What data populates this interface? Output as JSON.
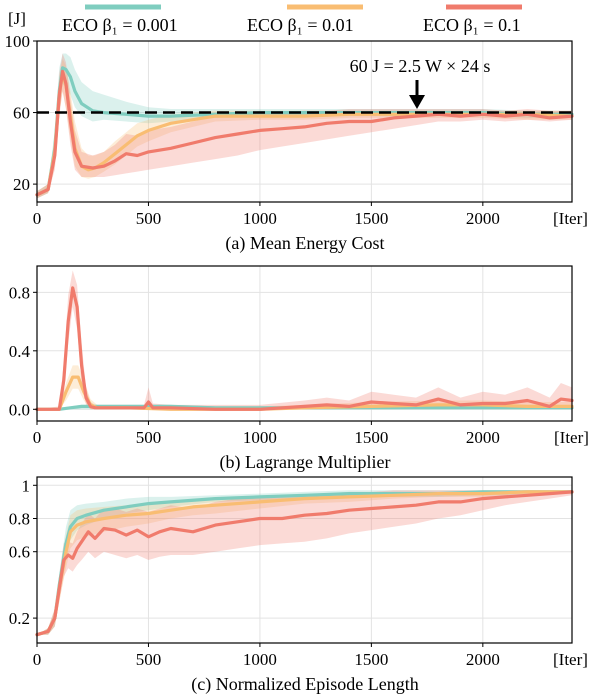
{
  "legend": {
    "entries": [
      {
        "label": "ECO β₁ = 0.001",
        "color": "#7fcdbf"
      },
      {
        "label": "ECO β₁ = 0.01",
        "color": "#f9bd72"
      },
      {
        "label": "ECO β₁ = 0.1",
        "color": "#f07b6c"
      }
    ]
  },
  "chart_data": [
    {
      "type": "line",
      "title": "(a) Mean Energy Cost",
      "ylabel": "[J]",
      "xlabel": "[Iter]",
      "xlim": [
        0,
        2400
      ],
      "ylim": [
        10,
        100
      ],
      "xticks": [
        0,
        500,
        1000,
        1500,
        2000
      ],
      "yticks": [
        20,
        60,
        100
      ],
      "reference_line": {
        "y": 60,
        "style": "dashed"
      },
      "annotation": {
        "text": "60 J = 2.5 W × 24 s",
        "x": 1720,
        "arrow_to_y": 62
      },
      "series": [
        {
          "name": "ECO β₁ = 0.001",
          "x": [
            0,
            50,
            80,
            100,
            115,
            130,
            150,
            170,
            200,
            250,
            300,
            400,
            500,
            600,
            800,
            1000,
            1200,
            1400,
            1600,
            1800,
            2000,
            2200,
            2400
          ],
          "y": [
            14,
            17,
            40,
            72,
            85,
            84,
            80,
            72,
            65,
            61,
            60,
            59,
            58,
            58,
            59,
            60,
            60,
            60,
            60,
            60,
            60,
            59,
            59
          ],
          "band_lo": [
            12,
            15,
            32,
            60,
            76,
            74,
            70,
            63,
            58,
            55,
            56,
            55,
            54,
            55,
            57,
            58,
            58,
            58,
            58,
            58,
            58,
            57,
            57
          ],
          "band_hi": [
            16,
            20,
            50,
            85,
            93,
            93,
            91,
            84,
            77,
            72,
            70,
            66,
            63,
            62,
            62,
            62,
            62,
            62,
            62,
            62,
            62,
            61,
            61
          ]
        },
        {
          "name": "ECO β₁ = 0.01",
          "x": [
            0,
            50,
            80,
            100,
            115,
            130,
            150,
            170,
            200,
            230,
            260,
            300,
            350,
            400,
            450,
            500,
            600,
            700,
            800,
            1000,
            1200,
            1400,
            1600,
            1800,
            2000,
            2200,
            2400
          ],
          "y": [
            14,
            17,
            38,
            70,
            82,
            75,
            58,
            40,
            30,
            28,
            29,
            32,
            37,
            42,
            47,
            50,
            54,
            56,
            58,
            58,
            58,
            59,
            59,
            59,
            59,
            59,
            58
          ],
          "band_lo": [
            12,
            15,
            30,
            60,
            72,
            62,
            45,
            30,
            24,
            23,
            24,
            27,
            31,
            36,
            41,
            44,
            49,
            52,
            55,
            56,
            56,
            57,
            57,
            57,
            57,
            56,
            56
          ],
          "band_hi": [
            16,
            20,
            46,
            80,
            90,
            86,
            72,
            55,
            40,
            36,
            36,
            38,
            44,
            49,
            54,
            56,
            59,
            60,
            61,
            61,
            61,
            61,
            61,
            61,
            61,
            61,
            61
          ]
        },
        {
          "name": "ECO β₁ = 0.1",
          "x": [
            0,
            50,
            80,
            100,
            115,
            130,
            150,
            170,
            200,
            250,
            300,
            350,
            400,
            450,
            500,
            600,
            700,
            800,
            900,
            1000,
            1100,
            1200,
            1300,
            1400,
            1500,
            1600,
            1700,
            1800,
            1900,
            2000,
            2100,
            2200,
            2300,
            2400
          ],
          "y": [
            14,
            17,
            36,
            70,
            83,
            76,
            55,
            38,
            30,
            29,
            30,
            33,
            37,
            36,
            38,
            40,
            43,
            46,
            48,
            50,
            51,
            52,
            54,
            55,
            55,
            57,
            58,
            59,
            58,
            59,
            58,
            59,
            57,
            58
          ],
          "band_lo": [
            12,
            15,
            28,
            58,
            72,
            62,
            42,
            28,
            24,
            24,
            24,
            25,
            26,
            27,
            28,
            30,
            32,
            34,
            36,
            39,
            41,
            43,
            45,
            47,
            49,
            51,
            53,
            55,
            55,
            56,
            55,
            56,
            55,
            56
          ],
          "band_hi": [
            16,
            20,
            44,
            82,
            93,
            88,
            68,
            50,
            38,
            36,
            38,
            42,
            48,
            47,
            50,
            52,
            55,
            58,
            59,
            60,
            60,
            61,
            61,
            62,
            62,
            62,
            62,
            62,
            62,
            62,
            61,
            62,
            61,
            61
          ]
        }
      ]
    },
    {
      "type": "line",
      "title": "(b) Lagrange Multiplier",
      "xlabel": "[Iter]",
      "xlim": [
        0,
        2400
      ],
      "ylim": [
        -0.08,
        0.98
      ],
      "xticks": [
        0,
        500,
        1000,
        1500,
        2000
      ],
      "yticks": [
        0.0,
        0.4,
        0.8
      ],
      "series": [
        {
          "name": "ECO β₁ = 0.001",
          "x": [
            0,
            100,
            150,
            200,
            250,
            400,
            600,
            800,
            1000,
            1500,
            2000,
            2400
          ],
          "y": [
            0.0,
            0.0,
            0.01,
            0.02,
            0.02,
            0.02,
            0.02,
            0.01,
            0.01,
            0.01,
            0.01,
            0.01
          ],
          "band_lo": [
            0.0,
            0.0,
            0.0,
            0.0,
            0.0,
            0.0,
            0.0,
            0.0,
            0.0,
            0.0,
            0.0,
            0.0
          ],
          "band_hi": [
            0.0,
            0.01,
            0.02,
            0.03,
            0.03,
            0.03,
            0.03,
            0.02,
            0.02,
            0.02,
            0.02,
            0.02
          ]
        },
        {
          "name": "ECO β₁ = 0.01",
          "x": [
            0,
            100,
            130,
            160,
            185,
            210,
            240,
            270,
            400,
            600,
            800,
            1000,
            1200,
            1500,
            1800,
            2000,
            2200,
            2400
          ],
          "y": [
            0.0,
            0.0,
            0.12,
            0.22,
            0.22,
            0.12,
            0.03,
            0.01,
            0.01,
            0.0,
            0.0,
            0.0,
            0.01,
            0.02,
            0.03,
            0.03,
            0.02,
            0.02
          ],
          "band_lo": [
            0.0,
            0.0,
            0.06,
            0.14,
            0.14,
            0.06,
            0.0,
            0.0,
            0.0,
            0.0,
            0.0,
            0.0,
            0.0,
            0.0,
            0.0,
            0.0,
            0.0,
            0.0
          ],
          "band_hi": [
            0.0,
            0.01,
            0.18,
            0.3,
            0.3,
            0.2,
            0.07,
            0.03,
            0.02,
            0.01,
            0.01,
            0.02,
            0.03,
            0.05,
            0.06,
            0.06,
            0.05,
            0.05
          ]
        },
        {
          "name": "ECO β₁ = 0.1",
          "x": [
            0,
            100,
            120,
            140,
            160,
            180,
            200,
            220,
            240,
            260,
            300,
            400,
            480,
            500,
            520,
            600,
            800,
            1000,
            1200,
            1300,
            1400,
            1500,
            1600,
            1700,
            1800,
            1900,
            2000,
            2100,
            2200,
            2300,
            2350,
            2400
          ],
          "y": [
            0.0,
            0.0,
            0.2,
            0.6,
            0.83,
            0.7,
            0.3,
            0.08,
            0.02,
            0.01,
            0.01,
            0.01,
            0.01,
            0.05,
            0.01,
            0.01,
            0.0,
            0.0,
            0.02,
            0.03,
            0.02,
            0.05,
            0.04,
            0.03,
            0.07,
            0.03,
            0.04,
            0.04,
            0.06,
            0.02,
            0.07,
            0.06
          ],
          "band_lo": [
            0.0,
            0.0,
            0.1,
            0.45,
            0.7,
            0.55,
            0.18,
            0.03,
            0.0,
            0.0,
            0.0,
            0.0,
            0.0,
            0.0,
            0.0,
            0.0,
            0.0,
            0.0,
            0.0,
            0.0,
            0.0,
            0.0,
            0.0,
            0.0,
            0.0,
            0.0,
            0.0,
            0.0,
            0.0,
            0.0,
            0.0,
            0.0
          ],
          "band_hi": [
            0.0,
            0.02,
            0.32,
            0.78,
            0.95,
            0.85,
            0.45,
            0.15,
            0.05,
            0.03,
            0.03,
            0.03,
            0.03,
            0.15,
            0.04,
            0.03,
            0.03,
            0.03,
            0.06,
            0.08,
            0.06,
            0.12,
            0.1,
            0.08,
            0.15,
            0.08,
            0.12,
            0.1,
            0.15,
            0.08,
            0.18,
            0.15
          ]
        }
      ]
    },
    {
      "type": "line",
      "title": "(c) Normalized Episode Length",
      "xlabel": "[Iter]",
      "xlim": [
        0,
        2400
      ],
      "ylim": [
        0.05,
        1.05
      ],
      "xticks": [
        0,
        500,
        1000,
        1500,
        2000
      ],
      "yticks": [
        0.2,
        0.6,
        0.8,
        1.0
      ],
      "series": [
        {
          "name": "ECO β₁ = 0.001",
          "x": [
            0,
            50,
            80,
            100,
            130,
            150,
            180,
            220,
            300,
            400,
            500,
            600,
            800,
            1000,
            1200,
            1400,
            1600,
            1800,
            2000,
            2200,
            2400
          ],
          "y": [
            0.1,
            0.12,
            0.2,
            0.4,
            0.65,
            0.75,
            0.8,
            0.82,
            0.85,
            0.87,
            0.89,
            0.9,
            0.92,
            0.93,
            0.94,
            0.95,
            0.95,
            0.95,
            0.96,
            0.96,
            0.96
          ],
          "band_lo": [
            0.1,
            0.1,
            0.15,
            0.33,
            0.55,
            0.67,
            0.73,
            0.76,
            0.8,
            0.83,
            0.85,
            0.87,
            0.9,
            0.91,
            0.92,
            0.93,
            0.93,
            0.93,
            0.94,
            0.94,
            0.95
          ],
          "band_hi": [
            0.1,
            0.14,
            0.25,
            0.47,
            0.75,
            0.85,
            0.88,
            0.89,
            0.9,
            0.92,
            0.93,
            0.93,
            0.94,
            0.95,
            0.96,
            0.97,
            0.97,
            0.97,
            0.97,
            0.97,
            0.97
          ]
        },
        {
          "name": "ECO β₁ = 0.01",
          "x": [
            0,
            50,
            80,
            100,
            130,
            150,
            180,
            220,
            300,
            400,
            500,
            600,
            700,
            800,
            1000,
            1200,
            1400,
            1600,
            1800,
            2000,
            2200,
            2400
          ],
          "y": [
            0.1,
            0.12,
            0.2,
            0.38,
            0.6,
            0.72,
            0.76,
            0.78,
            0.8,
            0.82,
            0.83,
            0.85,
            0.87,
            0.88,
            0.9,
            0.92,
            0.93,
            0.94,
            0.95,
            0.95,
            0.96,
            0.96
          ],
          "band_lo": [
            0.1,
            0.1,
            0.15,
            0.3,
            0.5,
            0.62,
            0.67,
            0.69,
            0.72,
            0.75,
            0.77,
            0.8,
            0.82,
            0.83,
            0.86,
            0.89,
            0.9,
            0.92,
            0.93,
            0.93,
            0.94,
            0.95
          ],
          "band_hi": [
            0.1,
            0.14,
            0.25,
            0.45,
            0.7,
            0.82,
            0.85,
            0.86,
            0.87,
            0.88,
            0.89,
            0.9,
            0.91,
            0.92,
            0.93,
            0.94,
            0.95,
            0.96,
            0.96,
            0.96,
            0.97,
            0.97
          ]
        },
        {
          "name": "ECO β₁ = 0.1",
          "x": [
            0,
            50,
            80,
            100,
            120,
            140,
            160,
            180,
            200,
            230,
            260,
            300,
            350,
            400,
            450,
            500,
            550,
            600,
            700,
            800,
            900,
            1000,
            1100,
            1200,
            1300,
            1400,
            1500,
            1600,
            1700,
            1800,
            1900,
            2000,
            2100,
            2200,
            2300,
            2400
          ],
          "y": [
            0.1,
            0.12,
            0.2,
            0.38,
            0.55,
            0.58,
            0.56,
            0.62,
            0.66,
            0.72,
            0.68,
            0.74,
            0.73,
            0.7,
            0.73,
            0.69,
            0.72,
            0.74,
            0.72,
            0.76,
            0.78,
            0.8,
            0.8,
            0.82,
            0.83,
            0.85,
            0.86,
            0.87,
            0.88,
            0.9,
            0.9,
            0.92,
            0.93,
            0.94,
            0.95,
            0.96
          ],
          "band_lo": [
            0.1,
            0.1,
            0.15,
            0.3,
            0.45,
            0.5,
            0.48,
            0.52,
            0.55,
            0.6,
            0.56,
            0.6,
            0.58,
            0.56,
            0.58,
            0.55,
            0.57,
            0.58,
            0.58,
            0.6,
            0.62,
            0.64,
            0.65,
            0.66,
            0.68,
            0.71,
            0.73,
            0.75,
            0.77,
            0.8,
            0.82,
            0.85,
            0.88,
            0.9,
            0.92,
            0.94
          ],
          "band_hi": [
            0.1,
            0.14,
            0.26,
            0.46,
            0.65,
            0.66,
            0.65,
            0.72,
            0.77,
            0.83,
            0.8,
            0.86,
            0.86,
            0.84,
            0.86,
            0.84,
            0.86,
            0.88,
            0.86,
            0.9,
            0.92,
            0.93,
            0.93,
            0.94,
            0.95,
            0.96,
            0.96,
            0.97,
            0.97,
            0.97,
            0.97,
            0.97,
            0.97,
            0.97,
            0.97,
            0.97
          ]
        }
      ]
    }
  ]
}
